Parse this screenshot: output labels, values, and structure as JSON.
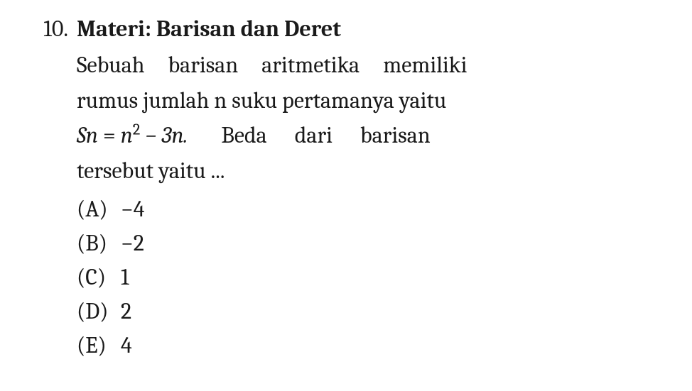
{
  "question": {
    "number": "10.",
    "title": "Materi: Barisan dan Deret",
    "text_line1": "Sebuah  barisan  aritmetika  memiliki",
    "text_line2": "rumus jumlah n suku pertamanya yaitu",
    "formula_sn": "Sn",
    "formula_eq": " = ",
    "formula_n": "n",
    "formula_sq": "2",
    "formula_rest": " − 3n.",
    "text_line3b": "Beda  dari  barisan",
    "text_line4": "tersebut yaitu ...",
    "options": [
      {
        "label": "(A)",
        "value": "−4"
      },
      {
        "label": "(B)",
        "value": "−2"
      },
      {
        "label": "(C)",
        "value": "1"
      },
      {
        "label": "(D)",
        "value": "2"
      },
      {
        "label": "(E)",
        "value": "4"
      }
    ]
  },
  "style": {
    "background_color": "#ffffff",
    "text_color": "#1a1a1a",
    "font_family": "Cambria, Georgia, serif",
    "title_fontsize": 32,
    "body_fontsize": 32,
    "title_fontweight": "bold"
  }
}
